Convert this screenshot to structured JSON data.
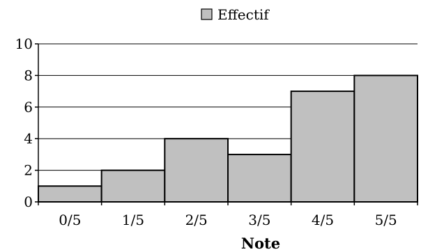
{
  "chart_data": {
    "type": "bar",
    "title": "",
    "xlabel": "Note",
    "ylabel": "",
    "categories": [
      "0/5",
      "1/5",
      "2/5",
      "3/5",
      "4/5",
      "5/5"
    ],
    "series": [
      {
        "name": "Effectif",
        "values": [
          1,
          2,
          4,
          3,
          7,
          8
        ],
        "color": "#c0c0c0"
      }
    ],
    "ylim": [
      0,
      10
    ],
    "yticks": [
      0,
      2,
      4,
      6,
      8,
      10
    ],
    "grid": true,
    "legend_position": "top-center",
    "bar_gap": "none"
  }
}
